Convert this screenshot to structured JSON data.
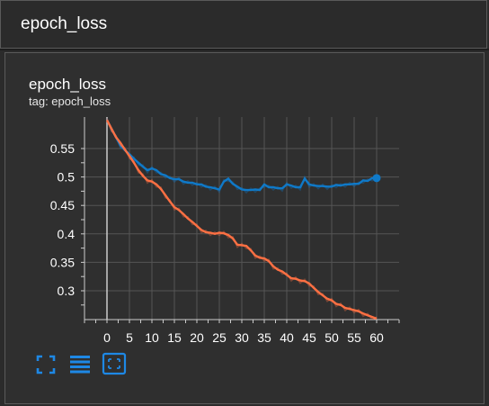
{
  "header": {
    "title": "epoch_loss"
  },
  "card": {
    "title": "epoch_loss",
    "tag": "tag: epoch_loss"
  },
  "toolbar": {
    "buttons": [
      {
        "name": "fullscreen-button",
        "icon": "fullscreen-icon"
      },
      {
        "name": "toggle-log-button",
        "icon": "list-icon"
      },
      {
        "name": "fit-domain-button",
        "icon": "fit-domain-icon"
      }
    ]
  },
  "colors": {
    "series_blue": "#0f79c8",
    "series_orange": "#ff7043",
    "grid": "#555555",
    "axis": "#cccccc"
  },
  "chart_data": {
    "type": "line",
    "title": "",
    "xlabel": "",
    "ylabel": "",
    "xlim": [
      -5,
      65
    ],
    "ylim": [
      0.25,
      0.585
    ],
    "x_ticks": [
      0,
      5,
      10,
      15,
      20,
      25,
      30,
      35,
      40,
      45,
      50,
      55,
      60
    ],
    "y_ticks": [
      0.3,
      0.35,
      0.4,
      0.45,
      0.5,
      0.55
    ],
    "grid": true,
    "series": [
      {
        "color": "#0f79c8",
        "x": [
          0,
          1,
          2,
          3,
          4,
          5,
          6,
          7,
          8,
          9,
          10,
          11,
          12,
          13,
          14,
          15,
          16,
          17,
          18,
          19,
          20,
          21,
          22,
          23,
          24,
          25,
          26,
          27,
          28,
          29,
          30,
          31,
          32,
          33,
          34,
          35,
          36,
          37,
          38,
          39,
          40,
          41,
          42,
          43,
          44,
          45,
          46,
          47,
          48,
          49,
          50,
          51,
          52,
          53,
          54,
          55,
          56,
          57,
          58,
          59,
          60
        ],
        "values": [
          0.6,
          0.585,
          0.57,
          0.555,
          0.547,
          0.54,
          0.532,
          0.525,
          0.518,
          0.512,
          0.515,
          0.512,
          0.505,
          0.503,
          0.498,
          0.496,
          0.496,
          0.492,
          0.49,
          0.49,
          0.487,
          0.487,
          0.483,
          0.482,
          0.48,
          0.478,
          0.492,
          0.497,
          0.488,
          0.483,
          0.478,
          0.477,
          0.477,
          0.478,
          0.477,
          0.487,
          0.482,
          0.482,
          0.48,
          0.48,
          0.487,
          0.485,
          0.482,
          0.482,
          0.497,
          0.487,
          0.485,
          0.484,
          0.484,
          0.483,
          0.483,
          0.486,
          0.485,
          0.487,
          0.487,
          0.488,
          0.488,
          0.494,
          0.493,
          0.498,
          0.498
        ]
      },
      {
        "color": "#ff7043",
        "x": [
          0,
          1,
          2,
          3,
          4,
          5,
          6,
          7,
          8,
          9,
          10,
          11,
          12,
          13,
          14,
          15,
          16,
          17,
          18,
          19,
          20,
          21,
          22,
          23,
          24,
          25,
          26,
          27,
          28,
          29,
          30,
          31,
          32,
          33,
          34,
          35,
          36,
          37,
          38,
          39,
          40,
          41,
          42,
          43,
          44,
          45,
          46,
          47,
          48,
          49,
          50,
          51,
          52,
          53,
          54,
          55,
          56,
          57,
          58,
          59,
          60
        ],
        "values": [
          0.6,
          0.585,
          0.57,
          0.56,
          0.548,
          0.537,
          0.525,
          0.512,
          0.502,
          0.494,
          0.492,
          0.487,
          0.479,
          0.468,
          0.457,
          0.447,
          0.442,
          0.435,
          0.427,
          0.421,
          0.414,
          0.407,
          0.403,
          0.402,
          0.4,
          0.402,
          0.401,
          0.398,
          0.392,
          0.381,
          0.38,
          0.379,
          0.371,
          0.362,
          0.358,
          0.357,
          0.352,
          0.343,
          0.337,
          0.334,
          0.328,
          0.322,
          0.321,
          0.318,
          0.317,
          0.313,
          0.305,
          0.298,
          0.292,
          0.286,
          0.283,
          0.277,
          0.275,
          0.27,
          0.268,
          0.266,
          0.264,
          0.26,
          0.257,
          0.254,
          0.251
        ]
      }
    ]
  }
}
